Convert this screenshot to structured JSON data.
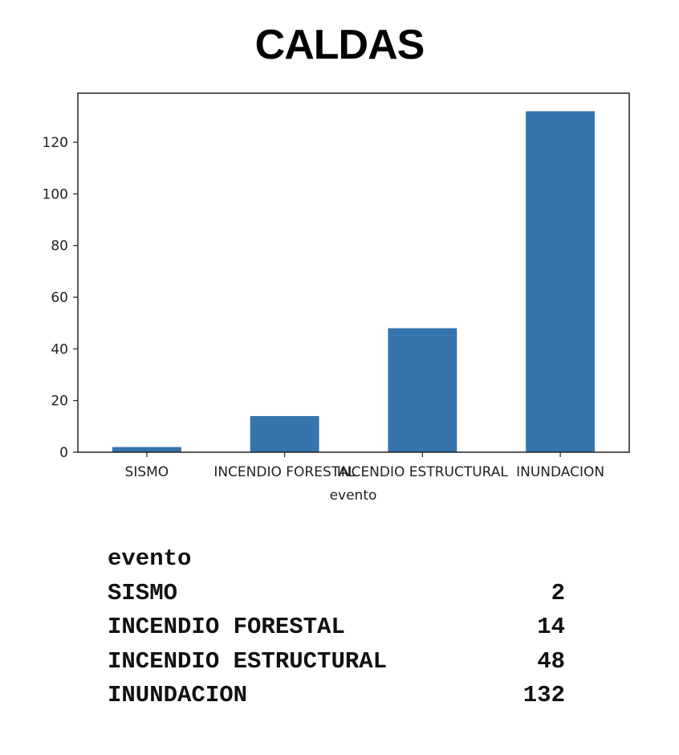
{
  "title": "CALDAS",
  "chart_data": {
    "type": "bar",
    "categories": [
      "SISMO",
      "INCENDIO FORESTAL",
      "INCENDIO ESTRUCTURAL",
      "INUNDACION"
    ],
    "values": [
      2,
      14,
      48,
      132
    ],
    "xlabel": "evento",
    "ylabel": "",
    "ylim": [
      0,
      139
    ],
    "yticks": [
      0,
      20,
      40,
      60,
      80,
      100,
      120
    ],
    "bar_color": "#3674ad",
    "grid": false,
    "legend": "none"
  },
  "table": {
    "header": "evento",
    "rows": [
      {
        "label": "SISMO",
        "value": "2"
      },
      {
        "label": "INCENDIO FORESTAL",
        "value": "14"
      },
      {
        "label": "INCENDIO ESTRUCTURAL",
        "value": "48"
      },
      {
        "label": "INUNDACION",
        "value": "132"
      }
    ]
  }
}
